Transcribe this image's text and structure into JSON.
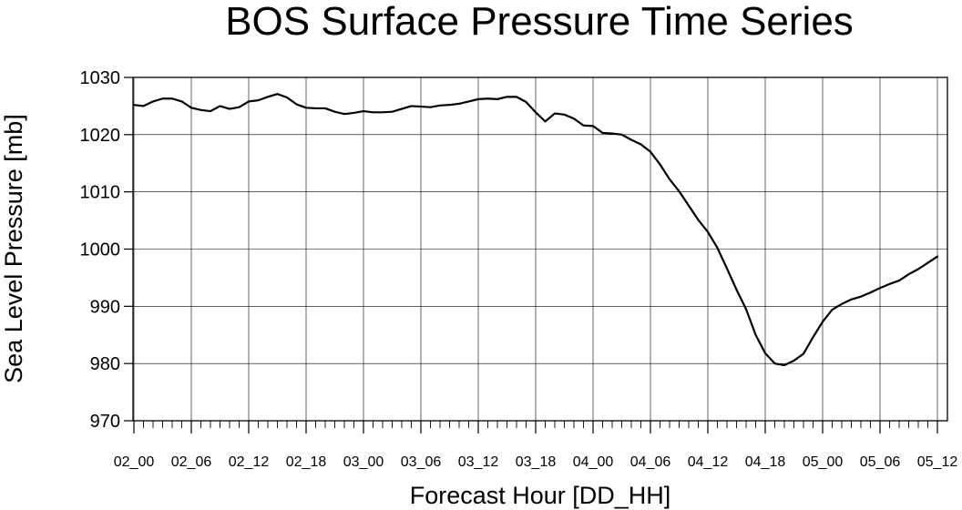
{
  "chart_data": {
    "type": "line",
    "title": "BOS Surface Pressure Time Series",
    "xlabel": "Forecast Hour [DD_HH]",
    "ylabel": "Sea Level Pressure [mb]",
    "ylim": [
      970,
      1030
    ],
    "y_ticks": [
      970,
      980,
      990,
      1000,
      1010,
      1020,
      1030
    ],
    "x_tick_labels": [
      "02_00",
      "02_06",
      "02_12",
      "02_18",
      "03_00",
      "03_06",
      "03_12",
      "03_18",
      "04_00",
      "04_06",
      "04_12",
      "04_18",
      "05_00",
      "05_06",
      "05_12"
    ],
    "x_step_hours": 1,
    "grid": true,
    "series": [
      {
        "x": [
          "02_00",
          "02_01",
          "02_02",
          "02_03",
          "02_04",
          "02_05",
          "02_06",
          "02_07",
          "02_08",
          "02_09",
          "02_10",
          "02_11",
          "02_12",
          "02_13",
          "02_14",
          "02_15",
          "02_16",
          "02_17",
          "02_18",
          "02_19",
          "02_20",
          "02_21",
          "02_22",
          "02_23",
          "03_00",
          "03_01",
          "03_02",
          "03_03",
          "03_04",
          "03_05",
          "03_06",
          "03_07",
          "03_08",
          "03_09",
          "03_10",
          "03_11",
          "03_12",
          "03_13",
          "03_14",
          "03_15",
          "03_16",
          "03_17",
          "03_18",
          "03_19",
          "03_20",
          "03_21",
          "03_22",
          "03_23",
          "04_00",
          "04_01",
          "04_02",
          "04_03",
          "04_04",
          "04_05",
          "04_06",
          "04_07",
          "04_08",
          "04_09",
          "04_10",
          "04_11",
          "04_12",
          "04_13",
          "04_14",
          "04_15",
          "04_16",
          "04_17",
          "04_18",
          "04_19",
          "04_20",
          "04_21",
          "04_22",
          "04_23",
          "05_00",
          "05_01",
          "05_02",
          "05_03",
          "05_04",
          "05_05",
          "05_06",
          "05_07",
          "05_08",
          "05_09",
          "05_10",
          "05_11",
          "05_12"
        ],
        "values": [
          1025.2,
          1025.0,
          1025.8,
          1026.3,
          1026.3,
          1025.8,
          1024.7,
          1024.3,
          1024.1,
          1025.0,
          1024.5,
          1024.8,
          1025.8,
          1026.0,
          1026.6,
          1027.1,
          1026.5,
          1025.3,
          1024.7,
          1024.6,
          1024.6,
          1024.0,
          1023.6,
          1023.8,
          1024.1,
          1023.9,
          1023.9,
          1024.0,
          1024.5,
          1025.0,
          1024.9,
          1024.8,
          1025.1,
          1025.2,
          1025.4,
          1025.8,
          1026.2,
          1026.3,
          1026.2,
          1026.6,
          1026.6,
          1025.7,
          1023.9,
          1022.3,
          1023.7,
          1023.5,
          1022.8,
          1021.6,
          1021.5,
          1020.3,
          1020.2,
          1020.0,
          1019.1,
          1018.3,
          1017.0,
          1014.8,
          1012.2,
          1010.1,
          1007.6,
          1005.1,
          1003.0,
          1000.2,
          996.6,
          992.9,
          989.5,
          985.0,
          981.8,
          980.0,
          979.7,
          980.5,
          981.7,
          984.6,
          987.3,
          989.4,
          990.4,
          991.2,
          991.7,
          992.4,
          993.2,
          993.9,
          994.5,
          995.6,
          996.5,
          997.6,
          998.7
        ]
      }
    ]
  }
}
